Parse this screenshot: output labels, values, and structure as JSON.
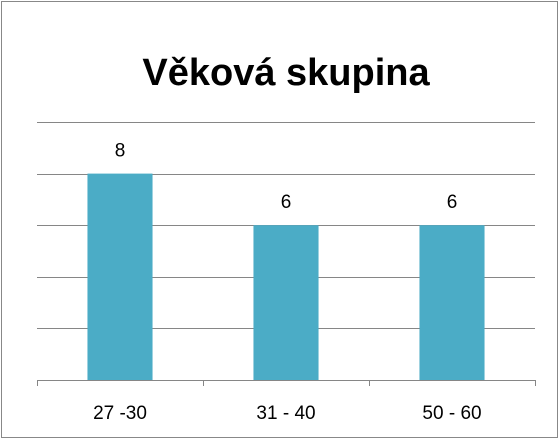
{
  "chart_data": {
    "type": "bar",
    "title": "Věková skupina",
    "categories": [
      "27 -30",
      "31 - 40",
      "50 - 60"
    ],
    "values": [
      8,
      6,
      6
    ],
    "color": "#4bacc6",
    "ylim": [
      0,
      10
    ],
    "yticks": [
      0,
      2,
      4,
      6,
      8,
      10
    ],
    "grid": true
  }
}
